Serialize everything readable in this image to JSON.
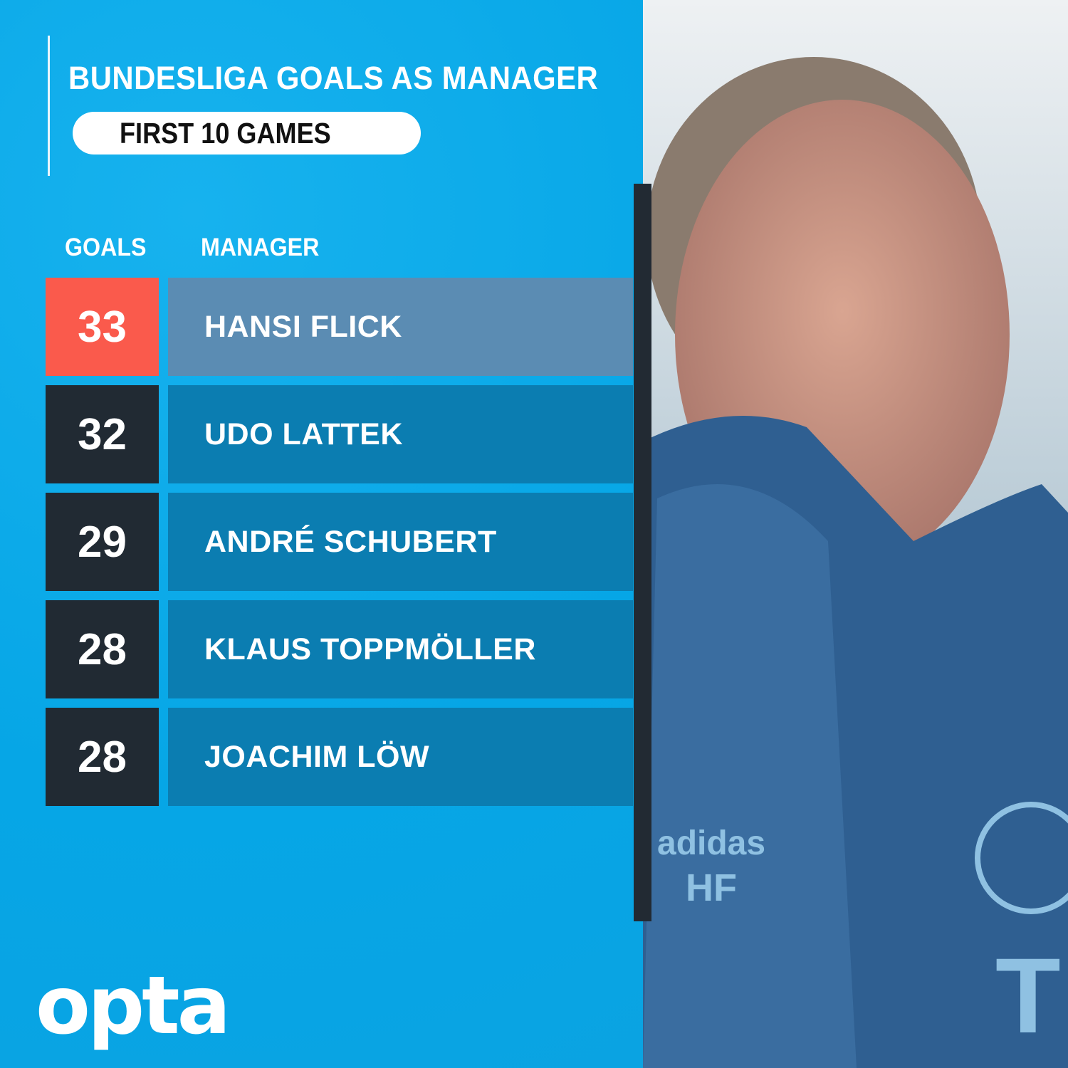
{
  "header": {
    "title": "BUNDESLIGA GOALS AS MANAGER",
    "subtitle": "FIRST 10 GAMES"
  },
  "chart_data": {
    "type": "table",
    "title": "BUNDESLIGA GOALS AS MANAGER",
    "subtitle": "FIRST 10 GAMES",
    "columns": [
      "GOALS",
      "MANAGER"
    ],
    "rows": [
      {
        "goals": "33",
        "manager": "HANSI FLICK",
        "highlight": true
      },
      {
        "goals": "32",
        "manager": "UDO LATTEK"
      },
      {
        "goals": "29",
        "manager": "ANDRÉ SCHUBERT"
      },
      {
        "goals": "28",
        "manager": "KLAUS TOPPMÖLLER"
      },
      {
        "goals": "28",
        "manager": "JOACHIM LÖW"
      }
    ]
  },
  "colors": {
    "background": "#0aaae8",
    "highlight_goal": "#fa5a4c",
    "highlight_name": "#5b8cb3",
    "goal_box": "#212a33",
    "name_box": "#0b7db1"
  },
  "logo": "opta"
}
